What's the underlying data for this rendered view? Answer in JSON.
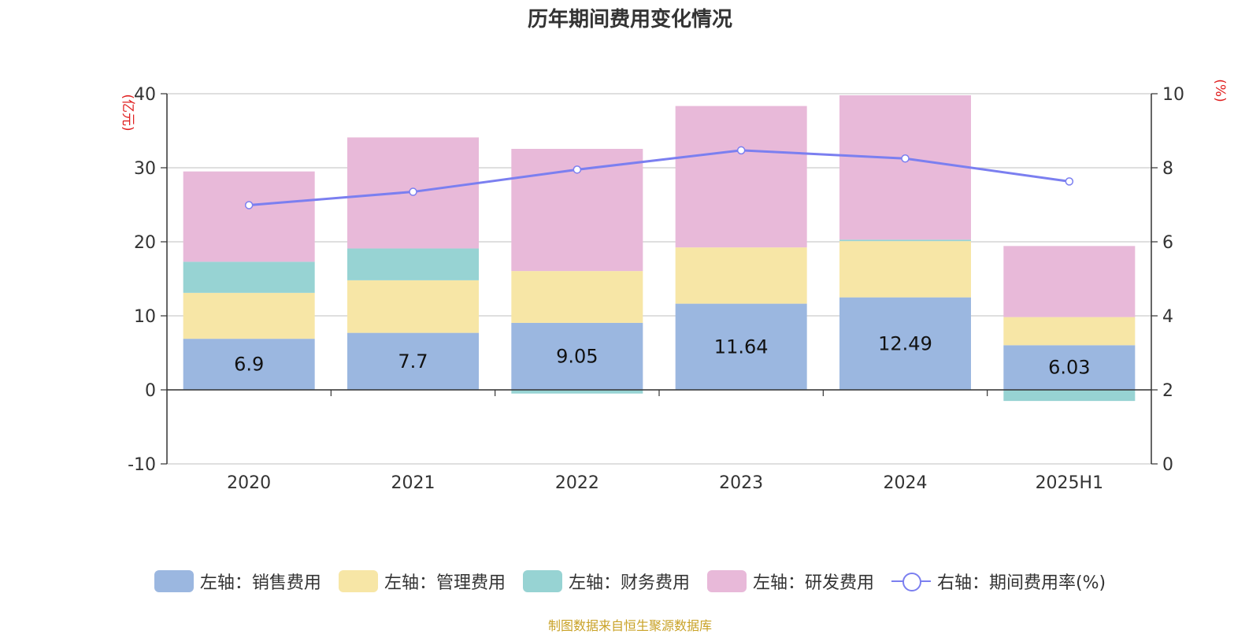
{
  "chart_data": {
    "type": "bar",
    "title": "历年期间费用变化情况",
    "categories": [
      "2020",
      "2021",
      "2022",
      "2023",
      "2024",
      "2025H1"
    ],
    "left_axis": {
      "unit": "(亿元)",
      "ylim": [
        -10,
        40
      ],
      "ticks": [
        -10,
        0,
        10,
        20,
        30,
        40
      ],
      "tick_labels": [
        "-10",
        "0",
        "10",
        "20",
        "30",
        "40"
      ]
    },
    "right_axis": {
      "unit": "(%)",
      "ylim": [
        0,
        10
      ],
      "ticks": [
        0,
        2,
        4,
        6,
        8,
        10
      ],
      "tick_labels": [
        "0",
        "2",
        "4",
        "6",
        "8",
        "10"
      ]
    },
    "series": [
      {
        "name": "左轴：销售费用",
        "type": "bar",
        "color": "#9bb7e0",
        "values": [
          6.9,
          7.7,
          9.05,
          11.64,
          12.49,
          6.03
        ],
        "labels": [
          "6.9",
          "7.7",
          "9.05",
          "11.64",
          "12.49",
          "6.03"
        ]
      },
      {
        "name": "左轴：管理费用",
        "type": "bar",
        "color": "#f7e6a6",
        "values": [
          6.2,
          7.1,
          7.0,
          7.6,
          7.6,
          3.8
        ]
      },
      {
        "name": "左轴：财务费用",
        "type": "bar",
        "color": "#97d3d3",
        "values": [
          4.2,
          4.3,
          -0.5,
          0.0,
          0.2,
          -1.5
        ]
      },
      {
        "name": "左轴：研发费用",
        "type": "bar",
        "color": "#e8b9d9",
        "values": [
          12.2,
          15.0,
          16.5,
          19.1,
          19.5,
          9.6
        ]
      },
      {
        "name": "右轴：期间费用率(%)",
        "type": "line",
        "axis": "right",
        "color": "#7b7ff0",
        "values": [
          6.99,
          7.35,
          7.95,
          8.47,
          8.25,
          7.63
        ]
      }
    ],
    "grid": true,
    "legend_position": "bottom"
  },
  "source_note": "制图数据来自恒生聚源数据库"
}
